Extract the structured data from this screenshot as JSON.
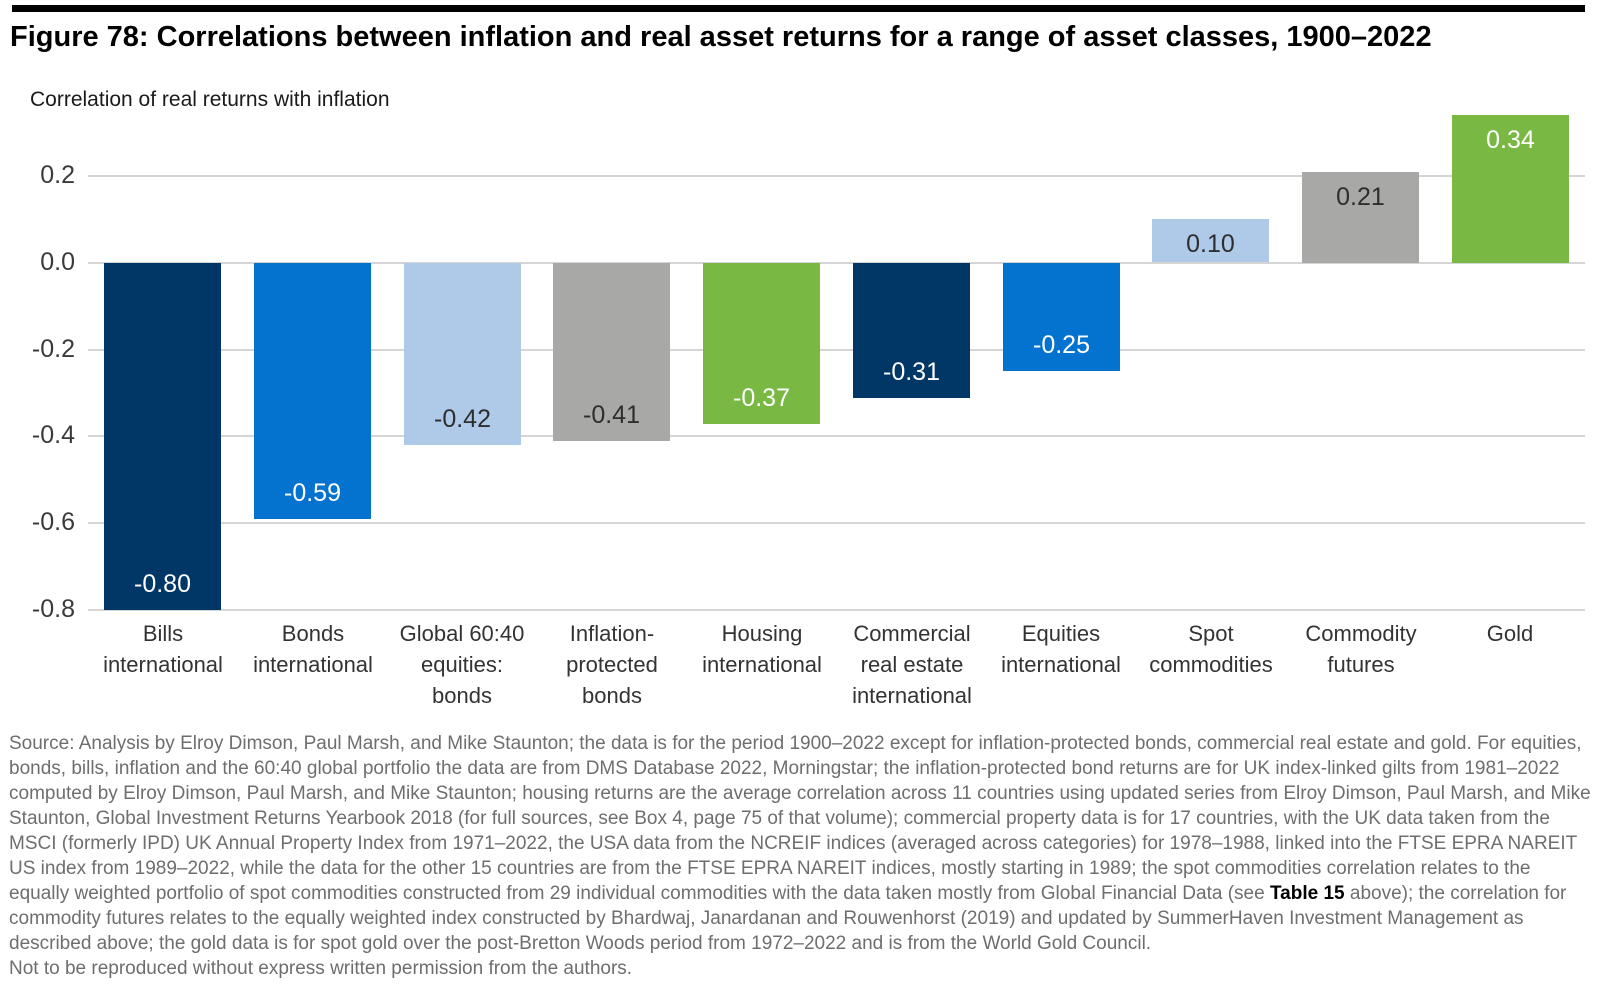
{
  "chart_data": {
    "type": "bar",
    "title": "Figure 78: Correlations between inflation and real asset returns for a range of asset classes, 1900–2022",
    "ylabel": "Correlation of real returns with inflation",
    "xlabel": "",
    "ylim": [
      -0.8,
      0.35
    ],
    "grid": true,
    "legend": "none",
    "categories": [
      "Bills international",
      "Bonds international",
      "Global 60:40 equities: bonds",
      "Inflation-protected bonds",
      "Housing international",
      "Commercial real estate international",
      "Equities international",
      "Spot commodities",
      "Commodity futures",
      "Gold"
    ],
    "values": [
      -0.8,
      -0.59,
      -0.42,
      -0.41,
      -0.37,
      -0.31,
      -0.25,
      0.1,
      0.21,
      0.34
    ],
    "yticks": [
      {
        "label": "0.2",
        "value": 0.2
      },
      {
        "label": "0.0",
        "value": 0.0
      },
      {
        "label": "-0.2",
        "value": -0.2
      },
      {
        "label": "-0.4",
        "value": -0.4
      },
      {
        "label": "-0.6",
        "value": -0.6
      },
      {
        "label": "-0.8",
        "value": -0.8
      }
    ],
    "bars": [
      {
        "category_display": "Bills\ninternational",
        "value": -0.8,
        "value_label": "-0.80",
        "color": "#003767",
        "label_color": "#ffffff"
      },
      {
        "category_display": "Bonds\ninternational",
        "value": -0.59,
        "value_label": "-0.59",
        "color": "#0473d0",
        "label_color": "#ffffff"
      },
      {
        "category_display": "Global 60:40\nequities:\nbonds",
        "value": -0.42,
        "value_label": "-0.42",
        "color": "#afc9e9",
        "label_color": "#2e2e2e"
      },
      {
        "category_display": "Inflation-\nprotected\nbonds",
        "value": -0.41,
        "value_label": "-0.41",
        "color": "#a8a8a6",
        "label_color": "#2e2e2e"
      },
      {
        "category_display": "Housing\ninternational",
        "value": -0.37,
        "value_label": "-0.37",
        "color": "#79b943",
        "label_color": "#ffffff"
      },
      {
        "category_display": "Commercial\nreal estate\ninternational",
        "value": -0.31,
        "value_label": "-0.31",
        "color": "#003767",
        "label_color": "#ffffff"
      },
      {
        "category_display": "Equities\ninternational",
        "value": -0.25,
        "value_label": "-0.25",
        "color": "#0473d0",
        "label_color": "#ffffff"
      },
      {
        "category_display": "Spot\ncommodities",
        "value": 0.1,
        "value_label": "0.10",
        "color": "#afc9e9",
        "label_color": "#2e2e2e"
      },
      {
        "category_display": "Commodity\nfutures",
        "value": 0.21,
        "value_label": "0.21",
        "color": "#a8a8a6",
        "label_color": "#2e2e2e"
      },
      {
        "category_display": "Gold",
        "value": 0.34,
        "value_label": "0.34",
        "color": "#79b943",
        "label_color": "#ffffff"
      }
    ],
    "colors": {
      "dark_navy": "#003767",
      "medium_blue": "#0473d0",
      "light_blue": "#afc9e9",
      "gray": "#a8a8a6",
      "green": "#79b943",
      "gridline": "#d5d5d5"
    }
  },
  "source": {
    "part1": "Source: Analysis by Elroy Dimson, Paul Marsh, and Mike Staunton; the data is for the period 1900–2022 except for inflation-protected bonds, commercial real estate and gold. For equities, bonds, bills, inflation and the 60:40 global portfolio the data are from DMS Database 2022, Morningstar; the inflation-protected bond returns are for UK index-linked gilts from 1981–2022 computed by Elroy Dimson, Paul Marsh, and Mike Staunton; housing returns are the average correlation across 11 countries using updated series from Elroy Dimson, Paul Marsh, and Mike Staunton, Global Investment Returns Yearbook 2018 (for full sources, see Box 4, page 75 of that volume); commercial property data is for 17 countries, with the UK data taken from the MSCI (formerly IPD) UK Annual Property Index from 1971–2022, the USA data from the NCREIF indices (averaged across categories) for 1978–1988, linked into the FTSE EPRA NAREIT US index from 1989–2022, while the data for the other 15 countries are from the FTSE EPRA NAREIT indices, mostly starting in 1989; the spot commodities correlation relates to the equally weighted portfolio of spot commodities constructed from 29 individual commodities with the data taken mostly from Global Financial Data (see ",
    "bold": "Table 15",
    "part2": " above); the correlation for commodity futures relates to the equally weighted index constructed by Bhardwaj, Janardanan and Rouwenhorst (2019) and updated by SummerHaven Investment Management as described above; the gold data is for spot gold over the post-Bretton Woods period from 1972–2022 and is from the World Gold Council.",
    "note": "Not to be reproduced without express written permission from the authors."
  }
}
